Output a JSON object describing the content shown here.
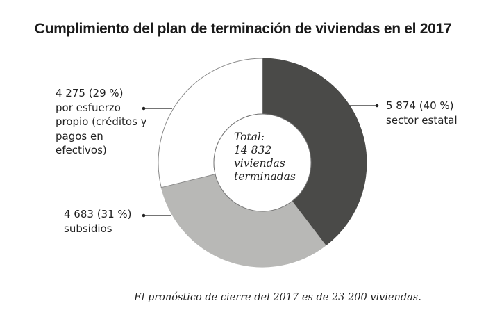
{
  "chart_data": {
    "type": "pie",
    "title": "Cumplimiento del plan de terminación de viviendas en el 2017",
    "center_label": [
      "Total:",
      "14 832",
      "viviendas",
      "terminadas"
    ],
    "slices": [
      {
        "name": "sector estatal",
        "value": 5874,
        "percent": 40,
        "color": "#4a4a48",
        "label": [
          "5 874 (40 %)",
          "sector estatal"
        ]
      },
      {
        "name": "subsidios",
        "value": 4683,
        "percent": 31,
        "color": "#b8b8b6",
        "label": [
          "4 683 (31 %)",
          "subsidios"
        ]
      },
      {
        "name": "por esfuerzo propio",
        "value": 4275,
        "percent": 29,
        "color": "#ffffff",
        "label": [
          "4 275 (29 %)",
          "por esfuerzo",
          "propio (créditos y",
          "pagos en",
          "efectivos)"
        ]
      }
    ],
    "footnote": "El pronóstico de cierre del 2017 es de 23 200 viviendas."
  }
}
